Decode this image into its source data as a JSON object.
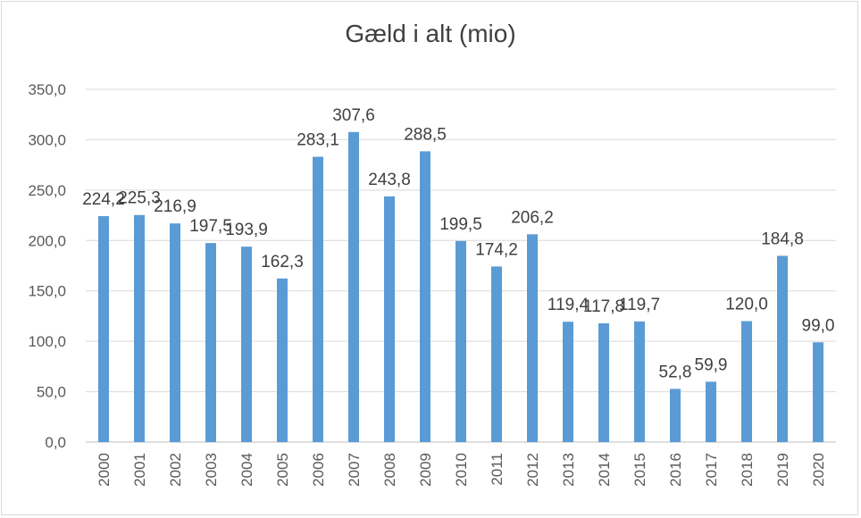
{
  "chart_data": {
    "type": "bar",
    "title": "Gæld i alt (mio)",
    "xlabel": "",
    "ylabel": "",
    "ylim": [
      0,
      350
    ],
    "yticks": [
      "0,0",
      "50,0",
      "100,0",
      "150,0",
      "200,0",
      "250,0",
      "300,0",
      "350,0"
    ],
    "grid": true,
    "legend": "none",
    "bar_color": "#5b9bd5",
    "categories": [
      "2000",
      "2001",
      "2002",
      "2003",
      "2004",
      "2005",
      "2006",
      "2007",
      "2008",
      "2009",
      "2010",
      "2011",
      "2012",
      "2013",
      "2014",
      "2015",
      "2016",
      "2017",
      "2018",
      "2019",
      "2020"
    ],
    "values": [
      224.2,
      225.3,
      216.9,
      197.5,
      193.9,
      162.3,
      283.1,
      307.6,
      243.8,
      288.5,
      199.5,
      174.2,
      206.2,
      119.4,
      117.8,
      119.7,
      52.8,
      59.9,
      120.0,
      184.8,
      99.0
    ],
    "value_labels": [
      "224,2",
      "225,3",
      "216,9",
      "197,5",
      "193,9",
      "162,3",
      "283,1",
      "307,6",
      "243,8",
      "288,5",
      "199,5",
      "174,2",
      "206,2",
      "119,4",
      "117,8",
      "119,7",
      "52,8",
      "59,9",
      "120,0",
      "184,8",
      "99,0"
    ]
  }
}
